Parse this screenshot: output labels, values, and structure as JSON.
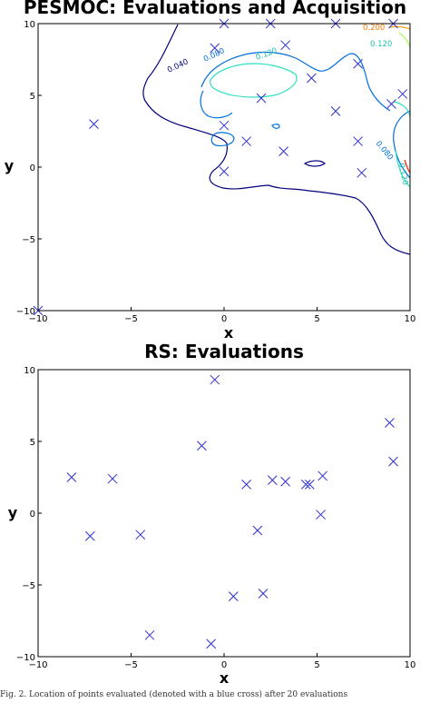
{
  "chart_data": [
    {
      "type": "scatter",
      "title": "PESMOC: Evaluations and Acquisition",
      "xlabel": "x",
      "ylabel": "y",
      "xlim": [
        -10,
        10
      ],
      "ylim": [
        -10,
        10
      ],
      "xticks": [
        "−10",
        "−5",
        "0",
        "5",
        "10"
      ],
      "yticks": [
        "10",
        "5",
        "0",
        "−5",
        "−10"
      ],
      "marker_color": "#3030d0",
      "points": [
        [
          -7,
          3
        ],
        [
          -0.5,
          8.3
        ],
        [
          0,
          10
        ],
        [
          2.5,
          10
        ],
        [
          3.3,
          8.5
        ],
        [
          6,
          10
        ],
        [
          7.2,
          7.2
        ],
        [
          4.7,
          6.2
        ],
        [
          2,
          4.8
        ],
        [
          0,
          2.9
        ],
        [
          9,
          4.4
        ],
        [
          9.6,
          5.1
        ],
        [
          6,
          3.9
        ],
        [
          1.2,
          1.8
        ],
        [
          3.2,
          1.1
        ],
        [
          7.2,
          1.8
        ],
        [
          0,
          -0.3
        ],
        [
          7.4,
          -0.4
        ],
        [
          9.1,
          10
        ],
        [
          -10,
          -10
        ]
      ],
      "contour_labels": [
        "0.040",
        "0.080",
        "0.120",
        "0.200",
        "0.120",
        "0.080",
        "0.120"
      ],
      "contour_colors": {
        "c040": "#00007f",
        "c080": "#0070dd",
        "c120": "#30e0c0",
        "c160": "#a0ff50",
        "c200": "#ff9900"
      }
    },
    {
      "type": "scatter",
      "title": "RS: Evaluations",
      "xlabel": "x",
      "ylabel": "y",
      "xlim": [
        -10,
        10
      ],
      "ylim": [
        -10,
        10
      ],
      "xticks": [
        "−10",
        "−5",
        "0",
        "5",
        "10"
      ],
      "yticks": [
        "10",
        "5",
        "0",
        "−5",
        "−10"
      ],
      "marker_color": "#3030d0",
      "points": [
        [
          -0.5,
          9.3
        ],
        [
          -1.2,
          4.7
        ],
        [
          8.9,
          6.3
        ],
        [
          9.1,
          3.6
        ],
        [
          -8.2,
          2.5
        ],
        [
          -6,
          2.4
        ],
        [
          1.2,
          2.0
        ],
        [
          2.6,
          2.3
        ],
        [
          3.3,
          2.2
        ],
        [
          4.4,
          2.0
        ],
        [
          4.6,
          2.0
        ],
        [
          5.3,
          2.6
        ],
        [
          1.8,
          -1.2
        ],
        [
          5.2,
          -0.1
        ],
        [
          -7.2,
          -1.6
        ],
        [
          -4.5,
          -1.5
        ],
        [
          0.5,
          -5.8
        ],
        [
          2.1,
          -5.6
        ],
        [
          -4,
          -8.5
        ],
        [
          -0.7,
          -9.1
        ]
      ]
    }
  ],
  "caption": "Fig. 2.  Location of points evaluated (denoted with a blue cross) after 20 evaluations"
}
